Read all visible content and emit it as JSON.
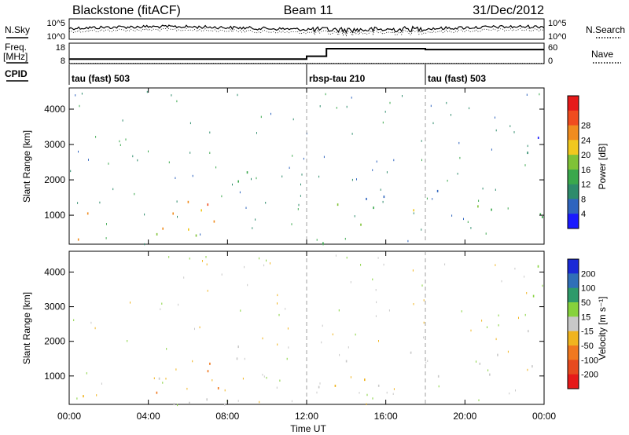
{
  "chart_data": {
    "type": "heatmap",
    "header": {
      "title_left": "Blackstone (fitACF)",
      "title_center": "Beam 11",
      "title_right": "31/Dec/2012"
    },
    "x": {
      "label": "Time UT",
      "ticks": [
        "00:00",
        "04:00",
        "08:00",
        "12:00",
        "16:00",
        "20:00",
        "00:00"
      ],
      "tick_hours": [
        0,
        4,
        8,
        12,
        16,
        20,
        24
      ],
      "range_hours": [
        0,
        24
      ]
    },
    "noise_panel": {
      "left_label": "N.Sky",
      "right_label": "N.Search",
      "left_ticks": [
        "10^5",
        "10^0"
      ],
      "right_ticks": [
        "10^5",
        "10^0"
      ]
    },
    "freq_panel": {
      "left_label_top": "Freq.",
      "left_label_bottom": "[MHz]",
      "left_ticks": [
        "18",
        "8"
      ],
      "left_range": [
        8,
        18
      ],
      "right_label": "Nave",
      "right_ticks": [
        "60",
        "0"
      ],
      "right_range": [
        0,
        60
      ],
      "freq_steps": [
        {
          "t": 0,
          "v": 10.2
        },
        {
          "t": 12.0,
          "v": 10.2
        },
        {
          "t": 12.0,
          "v": 11.6
        },
        {
          "t": 13.0,
          "v": 11.6
        },
        {
          "t": 13.0,
          "v": 15.3
        },
        {
          "t": 18.0,
          "v": 15.3
        },
        {
          "t": 18.0,
          "v": 14.9
        },
        {
          "t": 24.0,
          "v": 14.9
        }
      ],
      "nave_level": 1
    },
    "cpid": {
      "label": "CPID",
      "segments": [
        {
          "start": 0,
          "end": 12,
          "text": "tau (fast) 503"
        },
        {
          "start": 12,
          "end": 18,
          "text": "rbsp-tau 210"
        },
        {
          "start": 18,
          "end": 24,
          "text": "tau (fast) 503"
        }
      ]
    },
    "panels": [
      {
        "name": "power",
        "ylabel": "Slant Range [km]",
        "yticks": [
          1000,
          2000,
          3000,
          4000
        ],
        "ylim": [
          180,
          4600
        ],
        "colorbar_label": "Power [dB]",
        "colorbar_ticks": [
          "4",
          "8",
          "12",
          "16",
          "20",
          "24",
          "28"
        ],
        "colors": [
          "#1a1aff",
          "#2f64be",
          "#2e8b6b",
          "#3aa84c",
          "#7fc236",
          "#f0c81e",
          "#f08c1e",
          "#f04c1e",
          "#e61a1a"
        ]
      },
      {
        "name": "velocity",
        "ylabel": "Slant Range [km]",
        "yticks": [
          1000,
          2000,
          3000,
          4000
        ],
        "ylim": [
          180,
          4600
        ],
        "colorbar_label": "Velocity [m s⁻¹]",
        "colorbar_ticks": [
          "200",
          "100",
          "50",
          "15",
          "-15",
          "-50",
          "-100",
          "-200"
        ],
        "colors": [
          "#1a2ad6",
          "#2f6fb8",
          "#2e9a6a",
          "#86d23c",
          "#c8c8c8",
          "#f0b41e",
          "#f0781e",
          "#e64a1e",
          "#e61a1a"
        ]
      }
    ],
    "scatter_regions": [
      {
        "t0": 0.0,
        "t1": 8.9,
        "r0": 200,
        "r1": 1100,
        "power": 22,
        "vel": 0
      },
      {
        "t0": 3.8,
        "t1": 8.2,
        "r0": 500,
        "r1": 1500,
        "power": 25,
        "vel": -60
      },
      {
        "t0": 8.4,
        "t1": 12.1,
        "r0": 1450,
        "r1": 2250,
        "power": 16,
        "vel": 5
      },
      {
        "t0": 11.0,
        "t1": 12.1,
        "r0": 1100,
        "r1": 1450,
        "power": 20,
        "vel": -20
      },
      {
        "t0": 12.4,
        "t1": 13.3,
        "r0": 200,
        "r1": 900,
        "power": 10,
        "vel": 5
      },
      {
        "t0": 13.3,
        "t1": 22.6,
        "r0": 700,
        "r1": 1450,
        "power": 18,
        "vel": -5
      },
      {
        "t0": 13.3,
        "t1": 22.6,
        "r0": 1450,
        "r1": 1850,
        "power": 10,
        "vel": 0
      },
      {
        "t0": 22.6,
        "t1": 24.0,
        "r0": 900,
        "r1": 2400,
        "power": 13,
        "vel": 10
      },
      {
        "t0": 23.0,
        "t1": 24.0,
        "r0": 2400,
        "r1": 4400,
        "power": 8,
        "vel": 40
      }
    ]
  }
}
